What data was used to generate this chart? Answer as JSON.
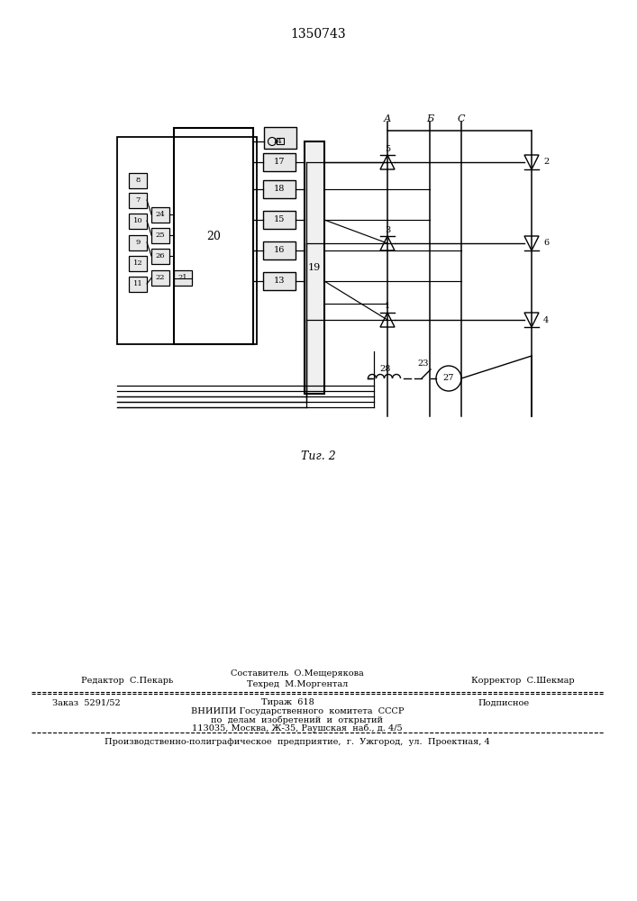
{
  "title": "1350743",
  "fig_caption": "Τиг. 2",
  "background_color": "#ffffff",
  "line_color": "#000000",
  "footer_line1_left": "Редактор  С.Пекарь",
  "footer_line1_center_top": "Составитель  О.Мещерякова",
  "footer_line1_center_bot": "Техред  М.Моргентал",
  "footer_line1_right": "Корректор  С.Шекмар",
  "footer_line2_col1": "Заказ  5291/52",
  "footer_line2_col2": "Тираж  618",
  "footer_line2_col3": "Подписное",
  "footer_vniipi1": "ВНИИПИ Государственного  комитета  СССР",
  "footer_vniipi2": "по  делам  изобретений  и  открытий",
  "footer_vniipi3": "113035, Москва, Ж-35, Раушская  наб., д. 4/5",
  "footer_last": "Производственно-полиграфическое  предприятие,  г.  Ужгород,  ул.  Проектная, 4"
}
